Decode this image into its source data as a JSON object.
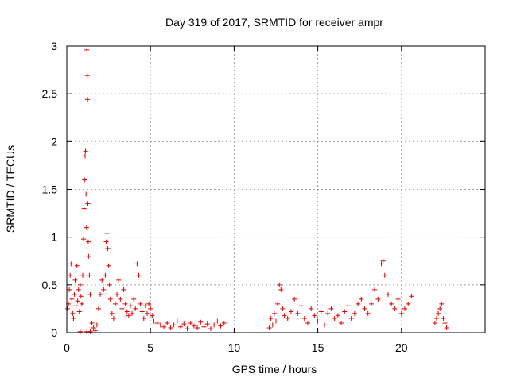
{
  "chart_data": {
    "type": "scatter",
    "title": "Day 319 of 2017, SRMTID for receiver ampr",
    "xlabel": "GPS time / hours",
    "ylabel": "SRMTID / TECUs",
    "xlim": [
      0,
      25
    ],
    "ylim": [
      0,
      3
    ],
    "x_ticks": [
      0,
      5,
      10,
      15,
      20
    ],
    "x_tick_labels": [
      "0",
      "5",
      "10",
      "15",
      "20"
    ],
    "y_ticks": [
      0,
      0.5,
      1,
      1.5,
      2,
      2.5,
      3
    ],
    "y_tick_labels": [
      "0",
      "0.5",
      "1",
      "1.5",
      "2",
      "2.5",
      "3"
    ],
    "grid": true,
    "marker": "plus",
    "color": "#e00000",
    "series": [
      {
        "name": "ampr",
        "points": [
          [
            0.05,
            0.25
          ],
          [
            0.1,
            0.3
          ],
          [
            0.15,
            0.45
          ],
          [
            0.2,
            0.6
          ],
          [
            0.25,
            0.72
          ],
          [
            0.3,
            0.35
          ],
          [
            0.35,
            0.2
          ],
          [
            0.4,
            0.15
          ],
          [
            0.45,
            0.4
          ],
          [
            0.5,
            0.55
          ],
          [
            0.55,
            0.28
          ],
          [
            0.6,
            0.7
          ],
          [
            0.65,
            0.33
          ],
          [
            0.7,
            0.45
          ],
          [
            0.75,
            0.22
          ],
          [
            0.8,
            0.5
          ],
          [
            0.85,
            0.38
          ],
          [
            0.9,
            0.3
          ],
          [
            0.95,
            0.6
          ],
          [
            1.0,
            0.98
          ],
          [
            1.03,
            1.3
          ],
          [
            1.06,
            1.6
          ],
          [
            1.09,
            1.85
          ],
          [
            1.12,
            1.9
          ],
          [
            1.15,
            1.45
          ],
          [
            1.18,
            1.1
          ],
          [
            1.2,
            2.96
          ],
          [
            1.22,
            2.69
          ],
          [
            1.24,
            2.44
          ],
          [
            1.26,
            1.35
          ],
          [
            1.28,
            0.95
          ],
          [
            1.3,
            0.8
          ],
          [
            1.35,
            0.6
          ],
          [
            1.4,
            0.4
          ],
          [
            1.5,
            0.1
          ],
          [
            1.6,
            0.05
          ],
          [
            1.7,
            0.02
          ],
          [
            0.8,
            0.01
          ],
          [
            1.2,
            0.01
          ],
          [
            1.4,
            0.01
          ],
          [
            1.8,
            0.08
          ],
          [
            1.9,
            0.25
          ],
          [
            2.0,
            0.4
          ],
          [
            2.1,
            0.55
          ],
          [
            2.2,
            0.45
          ],
          [
            2.3,
            0.6
          ],
          [
            2.35,
            0.95
          ],
          [
            2.4,
            1.04
          ],
          [
            2.45,
            0.88
          ],
          [
            2.5,
            0.7
          ],
          [
            2.55,
            0.5
          ],
          [
            2.6,
            0.35
          ],
          [
            2.7,
            0.2
          ],
          [
            2.8,
            0.15
          ],
          [
            2.9,
            0.3
          ],
          [
            3.0,
            0.4
          ],
          [
            3.1,
            0.55
          ],
          [
            3.2,
            0.35
          ],
          [
            3.3,
            0.25
          ],
          [
            3.4,
            0.45
          ],
          [
            3.5,
            0.3
          ],
          [
            3.6,
            0.22
          ],
          [
            3.7,
            0.18
          ],
          [
            3.8,
            0.28
          ],
          [
            3.9,
            0.2
          ],
          [
            4.0,
            0.35
          ],
          [
            4.1,
            0.25
          ],
          [
            4.2,
            0.72
          ],
          [
            4.3,
            0.6
          ],
          [
            4.4,
            0.3
          ],
          [
            4.5,
            0.22
          ],
          [
            4.6,
            0.15
          ],
          [
            4.7,
            0.28
          ],
          [
            4.8,
            0.2
          ],
          [
            4.9,
            0.3
          ],
          [
            5.0,
            0.25
          ],
          [
            5.1,
            0.18
          ],
          [
            5.2,
            0.12
          ],
          [
            5.4,
            0.1
          ],
          [
            5.6,
            0.08
          ],
          [
            5.8,
            0.06
          ],
          [
            6.0,
            0.1
          ],
          [
            6.2,
            0.05
          ],
          [
            6.4,
            0.08
          ],
          [
            6.6,
            0.12
          ],
          [
            6.8,
            0.06
          ],
          [
            7.0,
            0.09
          ],
          [
            7.2,
            0.04
          ],
          [
            7.4,
            0.1
          ],
          [
            7.6,
            0.07
          ],
          [
            7.8,
            0.05
          ],
          [
            8.0,
            0.11
          ],
          [
            8.2,
            0.06
          ],
          [
            8.4,
            0.09
          ],
          [
            8.6,
            0.04
          ],
          [
            8.8,
            0.08
          ],
          [
            9.0,
            0.12
          ],
          [
            9.2,
            0.07
          ],
          [
            9.4,
            0.1
          ],
          [
            12.1,
            0.05
          ],
          [
            12.2,
            0.15
          ],
          [
            12.3,
            0.08
          ],
          [
            12.4,
            0.2
          ],
          [
            12.5,
            0.12
          ],
          [
            12.6,
            0.3
          ],
          [
            12.7,
            0.5
          ],
          [
            12.8,
            0.45
          ],
          [
            12.9,
            0.25
          ],
          [
            13.0,
            0.18
          ],
          [
            13.2,
            0.15
          ],
          [
            13.4,
            0.22
          ],
          [
            13.6,
            0.35
          ],
          [
            13.8,
            0.2
          ],
          [
            14.0,
            0.28
          ],
          [
            14.2,
            0.15
          ],
          [
            14.4,
            0.1
          ],
          [
            14.6,
            0.25
          ],
          [
            14.8,
            0.18
          ],
          [
            15.0,
            0.12
          ],
          [
            15.2,
            0.22
          ],
          [
            15.4,
            0.08
          ],
          [
            15.6,
            0.2
          ],
          [
            15.8,
            0.25
          ],
          [
            16.0,
            0.15
          ],
          [
            16.2,
            0.18
          ],
          [
            16.4,
            0.1
          ],
          [
            16.6,
            0.22
          ],
          [
            16.8,
            0.28
          ],
          [
            17.0,
            0.15
          ],
          [
            17.2,
            0.2
          ],
          [
            17.4,
            0.3
          ],
          [
            17.6,
            0.35
          ],
          [
            17.8,
            0.25
          ],
          [
            18.0,
            0.2
          ],
          [
            18.2,
            0.3
          ],
          [
            18.4,
            0.45
          ],
          [
            18.6,
            0.35
          ],
          [
            18.8,
            0.72
          ],
          [
            18.9,
            0.75
          ],
          [
            19.0,
            0.6
          ],
          [
            19.2,
            0.4
          ],
          [
            19.4,
            0.3
          ],
          [
            19.6,
            0.25
          ],
          [
            19.8,
            0.35
          ],
          [
            20.0,
            0.2
          ],
          [
            20.2,
            0.25
          ],
          [
            20.4,
            0.3
          ],
          [
            20.6,
            0.38
          ],
          [
            22.0,
            0.1
          ],
          [
            22.1,
            0.15
          ],
          [
            22.2,
            0.2
          ],
          [
            22.3,
            0.25
          ],
          [
            22.4,
            0.3
          ],
          [
            22.5,
            0.15
          ],
          [
            22.6,
            0.1
          ],
          [
            22.7,
            0.05
          ]
        ]
      }
    ]
  }
}
